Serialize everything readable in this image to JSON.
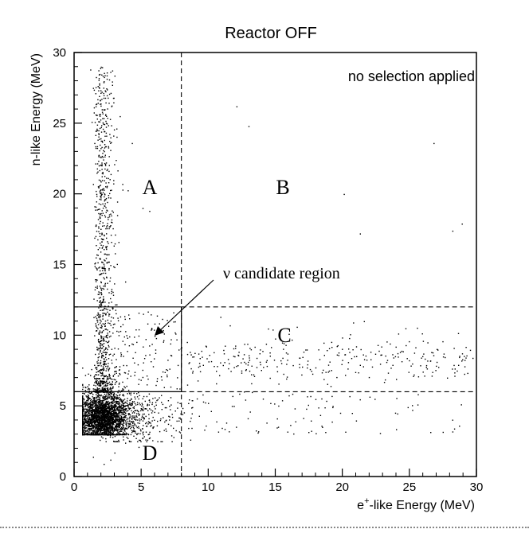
{
  "chart_data": {
    "type": "scatter",
    "title": "Reactor OFF",
    "xlabel_base": "e",
    "xlabel_sup": "+",
    "xlabel_rest": "-like Energy (MeV)",
    "ylabel": "n-like Energy (MeV)",
    "xlim": [
      0,
      30
    ],
    "ylim": [
      0,
      30
    ],
    "xticks": [
      0,
      5,
      10,
      15,
      20,
      25,
      30
    ],
    "yticks": [
      0,
      5,
      10,
      15,
      20,
      25,
      30
    ],
    "grid": false,
    "annotation": "no selection applied",
    "candidate_label": "ν candidate region",
    "regions": [
      "A",
      "B",
      "C",
      "D"
    ],
    "cuts": {
      "x_cut": 8,
      "y_low": 6,
      "y_high": 12
    },
    "series": [
      {
        "points": [
          [
            1.2,
            28.8
          ],
          [
            1.4,
            27.5
          ],
          [
            1.6,
            26.2
          ],
          [
            1.3,
            25.1
          ],
          [
            1.8,
            24.3
          ],
          [
            1.5,
            23.6
          ],
          [
            2.1,
            22.9
          ],
          [
            1.7,
            21.8
          ],
          [
            1.4,
            20.7
          ],
          [
            2.0,
            19.9
          ],
          [
            1.6,
            19.1
          ],
          [
            2.3,
            18.4
          ],
          [
            1.8,
            17.6
          ],
          [
            1.5,
            16.9
          ],
          [
            2.2,
            16.1
          ],
          [
            1.9,
            15.4
          ],
          [
            1.6,
            14.8
          ],
          [
            2.4,
            14.1
          ],
          [
            1.7,
            13.5
          ],
          [
            2.0,
            12.9
          ],
          [
            2.6,
            28.1
          ],
          [
            2.9,
            26.8
          ],
          [
            3.4,
            25.5
          ],
          [
            2.7,
            24.0
          ],
          [
            3.1,
            22.4
          ],
          [
            3.6,
            20.3
          ],
          [
            2.8,
            18.0
          ],
          [
            3.3,
            16.6
          ],
          [
            2.5,
            15.2
          ],
          [
            3.8,
            13.8
          ],
          [
            5.1,
            19.0
          ],
          [
            4.3,
            23.6
          ],
          [
            5.6,
            18.8
          ],
          [
            12.1,
            26.2
          ],
          [
            13.0,
            24.8
          ],
          [
            26.8,
            23.6
          ],
          [
            20.1,
            20.0
          ],
          [
            28.2,
            17.4
          ],
          [
            21.3,
            17.2
          ],
          [
            28.9,
            17.9
          ],
          [
            8.9,
            8.5
          ],
          [
            9.6,
            7.9
          ],
          [
            10.4,
            8.8
          ],
          [
            11.2,
            8.1
          ],
          [
            12.0,
            9.1
          ],
          [
            12.8,
            7.6
          ],
          [
            13.6,
            8.4
          ],
          [
            14.3,
            9.4
          ],
          [
            15.1,
            7.8
          ],
          [
            15.9,
            8.7
          ],
          [
            16.6,
            10.6
          ],
          [
            17.4,
            8.2
          ],
          [
            18.2,
            9.0
          ],
          [
            19.0,
            7.5
          ],
          [
            19.7,
            8.6
          ],
          [
            20.5,
            9.8
          ],
          [
            21.3,
            7.9
          ],
          [
            22.1,
            8.3
          ],
          [
            22.9,
            9.2
          ],
          [
            23.6,
            7.7
          ],
          [
            24.4,
            8.9
          ],
          [
            25.2,
            8.0
          ],
          [
            26.0,
            9.6
          ],
          [
            26.7,
            7.4
          ],
          [
            27.5,
            8.5
          ],
          [
            28.3,
            9.1
          ],
          [
            29.1,
            7.8
          ],
          [
            29.7,
            8.4
          ],
          [
            10.9,
            11.3
          ],
          [
            16.0,
            10.1
          ],
          [
            21.6,
            11.0
          ],
          [
            24.7,
            10.5
          ],
          [
            9.2,
            6.8
          ],
          [
            13.2,
            6.6
          ],
          [
            18.6,
            6.9
          ],
          [
            23.1,
            6.7
          ],
          [
            27.8,
            7.0
          ],
          [
            11.6,
            10.7
          ],
          [
            14.8,
            10.4
          ],
          [
            20.8,
            10.9
          ],
          [
            8.5,
            5.2
          ],
          [
            9.3,
            4.3
          ],
          [
            10.6,
            3.9
          ],
          [
            11.9,
            5.0
          ],
          [
            13.1,
            4.6
          ],
          [
            15.5,
            5.4
          ],
          [
            17.3,
            4.8
          ],
          [
            19.2,
            5.7
          ],
          [
            22.4,
            5.5
          ],
          [
            25.6,
            5.1
          ],
          [
            28.7,
            3.6
          ],
          [
            4.8,
            2.1
          ],
          [
            5.5,
            3.0
          ],
          [
            6.2,
            2.5
          ],
          [
            6.8,
            3.4
          ],
          [
            7.4,
            2.8
          ],
          [
            5.1,
            4.7
          ],
          [
            6.0,
            5.6
          ],
          [
            6.6,
            4.2
          ],
          [
            7.2,
            5.1
          ],
          [
            4.5,
            7.4
          ],
          [
            5.3,
            8.6
          ],
          [
            6.1,
            9.8
          ],
          [
            6.9,
            7.1
          ],
          [
            7.5,
            10.2
          ],
          [
            4.1,
            11.2
          ],
          [
            3.6,
            9.6
          ],
          [
            2.9,
            10.8
          ],
          [
            1.4,
            1.4
          ],
          [
            2.2,
            0.9
          ],
          [
            3.0,
            1.7
          ],
          [
            1.9,
            2.6
          ],
          [
            0.9,
            3.1
          ],
          [
            0.8,
            4.4
          ],
          [
            0.7,
            5.3
          ],
          [
            1.0,
            6.2
          ],
          [
            2.7,
            1.2
          ],
          [
            3.8,
            2.4
          ],
          [
            4.4,
            3.3
          ],
          [
            6.4,
            4.0
          ]
        ]
      }
    ],
    "dense_cluster": {
      "center": [
        2.0,
        4.2
      ],
      "spread": [
        0.75,
        0.75
      ],
      "tail_x": 2.8,
      "tail_y": 6.5,
      "count": 2600
    }
  }
}
